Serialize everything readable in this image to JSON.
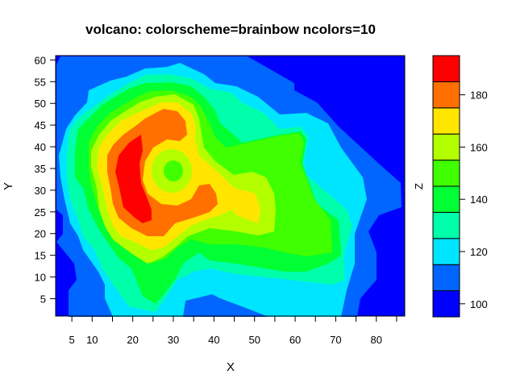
{
  "chart_data": {
    "type": "heatmap",
    "subtype": "filled-contour",
    "title": "volcano: colorscheme=brainbow ncolors=10",
    "xlabel": "X",
    "ylabel": "Y",
    "zlabel": "Z",
    "xlim": [
      1,
      87
    ],
    "ylim": [
      1,
      61
    ],
    "zlim": [
      95,
      195
    ],
    "x_ticks": [
      5,
      10,
      15,
      20,
      25,
      30,
      35,
      40,
      45,
      50,
      55,
      60,
      65,
      70,
      75,
      80,
      85
    ],
    "x_tick_labels": [
      {
        "v": 5,
        "t": "5"
      },
      {
        "v": 10,
        "t": "10"
      },
      {
        "v": 20,
        "t": "20"
      },
      {
        "v": 30,
        "t": "30"
      },
      {
        "v": 40,
        "t": "40"
      },
      {
        "v": 50,
        "t": "50"
      },
      {
        "v": 60,
        "t": "60"
      },
      {
        "v": 70,
        "t": "70"
      },
      {
        "v": 80,
        "t": "80"
      }
    ],
    "y_ticks": [
      5,
      10,
      15,
      20,
      25,
      30,
      35,
      40,
      45,
      50,
      55,
      60
    ],
    "y_tick_labels": [
      "5",
      "10",
      "15",
      "20",
      "25",
      "30",
      "35",
      "40",
      "45",
      "50",
      "55",
      "60"
    ],
    "levels": [
      95,
      105,
      115,
      125,
      135,
      145,
      155,
      165,
      175,
      185,
      195
    ],
    "colors": [
      "#0000FF",
      "#0066FF",
      "#00E5FF",
      "#00FFAA",
      "#00FF33",
      "#40FF00",
      "#B3FF00",
      "#FFE500",
      "#FF7000",
      "#FF0000"
    ],
    "colorbar_ticks": [
      {
        "v": 100,
        "t": "100"
      },
      {
        "v": 120,
        "t": "120"
      },
      {
        "v": 140,
        "t": "140"
      },
      {
        "v": 160,
        "t": "160"
      },
      {
        "v": 180,
        "t": "180"
      }
    ],
    "grid": false,
    "legend": "right"
  }
}
